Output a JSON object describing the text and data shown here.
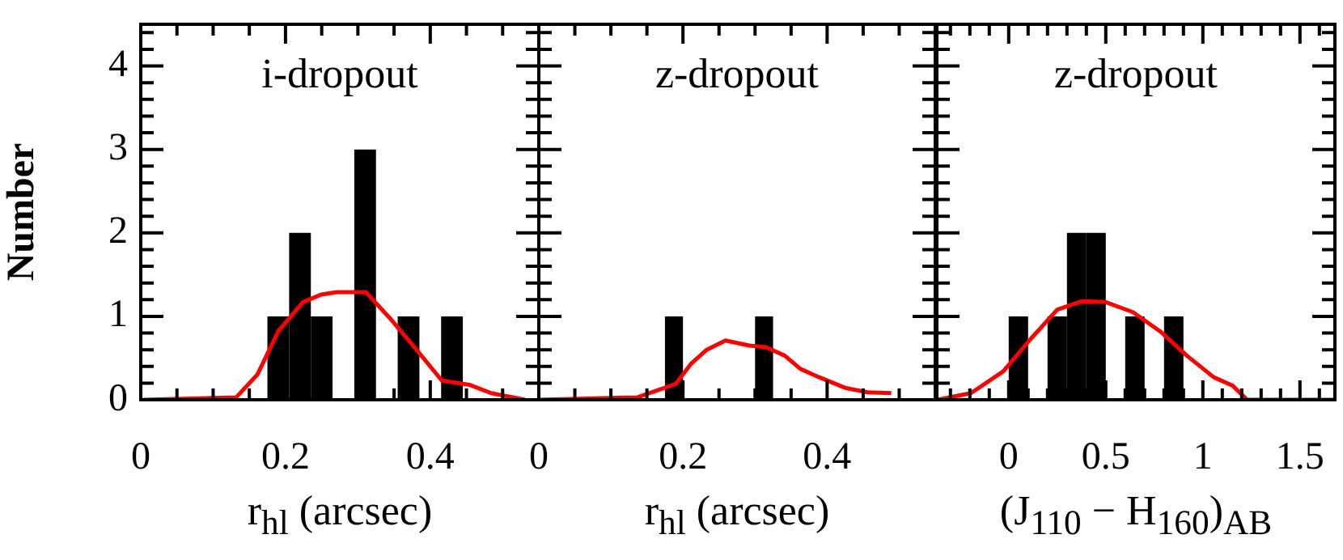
{
  "chart_data": [
    {
      "type": "histogram",
      "annotations": [
        "i-dropout"
      ],
      "ylabel": "Number",
      "xlabel": "r$_{hl}$ (arcsec)",
      "color": "#000000",
      "bins": [
        0.175,
        0.205,
        0.235,
        0.265,
        0.295,
        0.325,
        0.355,
        0.385,
        0.415,
        0.445
      ],
      "values": [
        1,
        2,
        1,
        0,
        3,
        0,
        1,
        0,
        1
      ],
      "series": [
        {
          "type": "line",
          "color": "#ff0000",
          "x": [
            0.004,
            0.132,
            0.161,
            0.19,
            0.224,
            0.249,
            0.271,
            0.311,
            0.344,
            0.381,
            0.416,
            0.454,
            0.484,
            0.531
          ],
          "values": [
            0,
            0.03,
            0.3,
            0.82,
            1.17,
            1.26,
            1.29,
            1.29,
            0.98,
            0.6,
            0.23,
            0.18,
            0.08,
            0
          ]
        }
      ],
      "xlim": [
        0,
        0.55
      ],
      "xticks": [
        0,
        0.2,
        0.4
      ],
      "ylim": [
        0,
        4.5
      ],
      "yticks": [
        0,
        1,
        2,
        3,
        4
      ]
    },
    {
      "type": "histogram",
      "annotations": [
        "z-dropout"
      ],
      "xlabel": "r$_{hl}$ (arcsec)",
      "color": "#000000",
      "bins": [
        0.175,
        0.2,
        0.225,
        0.25,
        0.275,
        0.3,
        0.325
      ],
      "values": [
        1,
        0,
        0,
        0,
        0,
        1
      ],
      "series": [
        {
          "type": "line",
          "color": "#ff0000",
          "x": [
            0,
            0.137,
            0.19,
            0.211,
            0.233,
            0.259,
            0.292,
            0.315,
            0.341,
            0.363,
            0.389,
            0.426,
            0.456,
            0.489
          ],
          "values": [
            0,
            0.03,
            0.19,
            0.43,
            0.6,
            0.71,
            0.65,
            0.63,
            0.53,
            0.37,
            0.27,
            0.14,
            0.09,
            0.08
          ]
        }
      ],
      "xlim": [
        0,
        0.55
      ],
      "xticks": [
        0,
        0.2,
        0.4
      ],
      "ylim": [
        0,
        4.5
      ],
      "yticks": [
        0,
        1,
        2,
        3,
        4
      ],
      "tick_labels": "x"
    },
    {
      "type": "histogram",
      "annotations": [
        "z-dropout"
      ],
      "xlabel": "(J$_{110}$ − H$_{160}$)$_{AB}$",
      "color": "#000000",
      "bins": [
        0,
        0.1,
        0.2,
        0.3,
        0.4,
        0.5,
        0.6,
        0.7,
        0.8,
        0.9
      ],
      "values": [
        1,
        0,
        1,
        2,
        2,
        0,
        1,
        0,
        1
      ],
      "series": [
        {
          "type": "line",
          "color": "#ff0000",
          "x": [
            -0.367,
            -0.194,
            -0.028,
            0.11,
            0.25,
            0.375,
            0.5,
            0.64,
            0.78,
            0.917,
            1.056,
            1.153,
            1.228,
            1.68
          ],
          "values": [
            0,
            0.08,
            0.34,
            0.72,
            1.08,
            1.18,
            1.17,
            1.05,
            0.82,
            0.53,
            0.27,
            0.17,
            0,
            0
          ]
        }
      ],
      "xlim": [
        -0.37,
        1.68
      ],
      "xticks": [
        0,
        0.5,
        1,
        1.5
      ],
      "ylim": [
        0,
        4.5
      ],
      "yticks": [
        0,
        1,
        2,
        3,
        4
      ],
      "tick_labels": "x"
    }
  ]
}
